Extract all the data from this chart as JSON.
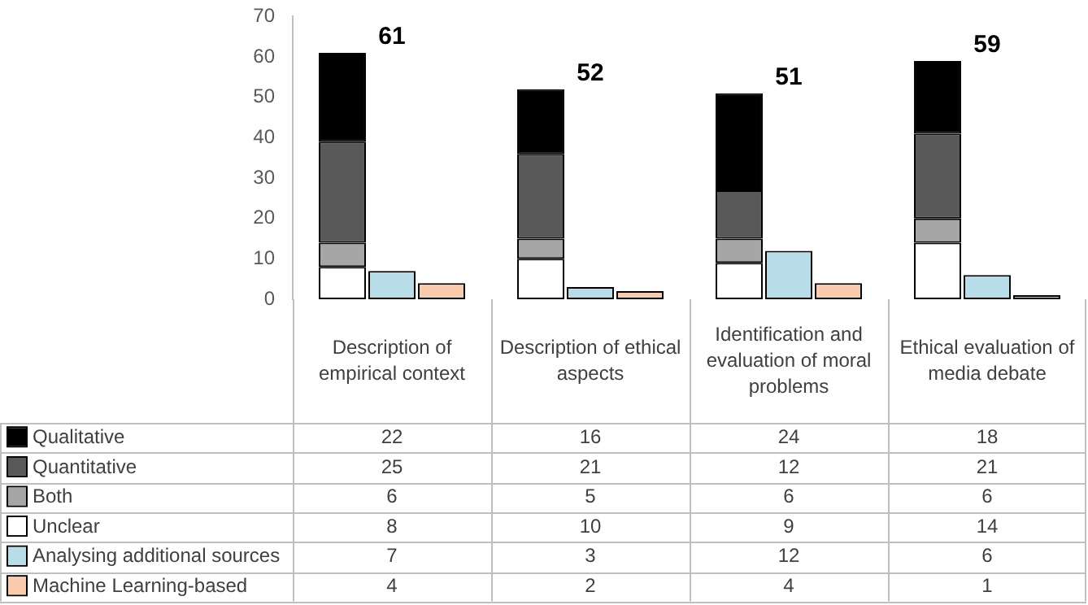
{
  "chart_data": {
    "type": "bar",
    "data_labels": true,
    "legend": "bottom left",
    "grid": false,
    "categories": [
      "Description of empirical context",
      "Description of ethical aspects",
      "Identification and evaluation of moral problems",
      "Ethical evaluation of media debate"
    ],
    "ylim": [
      0,
      70
    ],
    "yticks": [
      0,
      10,
      20,
      30,
      40,
      50,
      60,
      70
    ],
    "annotations": [
      "61",
      "52",
      "51",
      "59"
    ],
    "series": [
      {
        "name": "Unclear",
        "color": "#ffffff",
        "values": [
          8,
          10,
          9,
          14
        ],
        "base": [
          0,
          0,
          0,
          0
        ]
      },
      {
        "name": "Both",
        "color": "#a6a6a6",
        "values": [
          6,
          5,
          6,
          6
        ],
        "base": [
          8,
          10,
          9,
          14
        ]
      },
      {
        "name": "Quantitative",
        "color": "#595959",
        "values": [
          25,
          21,
          12,
          21
        ],
        "base": [
          14,
          15,
          15,
          20
        ]
      },
      {
        "name": "Qualitative",
        "color": "#000000",
        "values": [
          22,
          16,
          24,
          18
        ],
        "base": [
          39,
          36,
          27,
          41
        ]
      },
      {
        "name": "Analysing additional sources",
        "color": "#b7dee8",
        "values": [
          7,
          3,
          12,
          6
        ]
      },
      {
        "name": "Machine Learning-based",
        "color": "#f8cbad",
        "values": [
          4,
          2,
          4,
          1
        ]
      }
    ]
  }
}
